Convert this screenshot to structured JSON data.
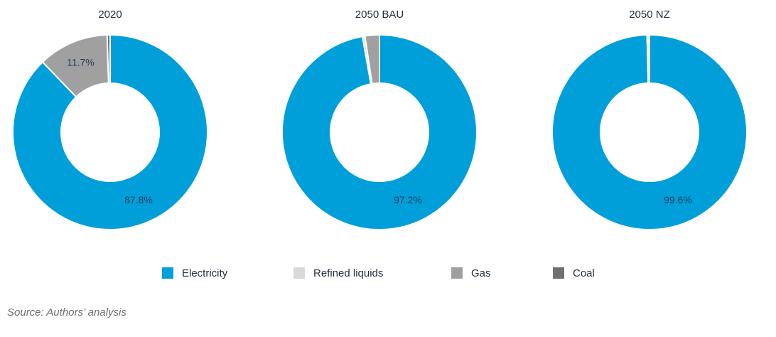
{
  "chart_data": [
    {
      "type": "pie",
      "title": "2020",
      "categories": [
        "Electricity",
        "Refined liquids",
        "Gas",
        "Coal"
      ],
      "values": [
        87.8,
        0.0,
        11.7,
        0.5
      ],
      "labels": [
        "87.8%",
        "",
        "11.7%",
        ""
      ]
    },
    {
      "type": "pie",
      "title": "2050 BAU",
      "categories": [
        "Electricity",
        "Refined liquids",
        "Gas",
        "Coal"
      ],
      "values": [
        97.2,
        0.4,
        2.4,
        0.0
      ],
      "labels": [
        "97.2%",
        "",
        "",
        ""
      ]
    },
    {
      "type": "pie",
      "title": "2050 NZ",
      "categories": [
        "Electricity",
        "Refined liquids",
        "Gas",
        "Coal"
      ],
      "values": [
        99.6,
        0.2,
        0.2,
        0.0
      ],
      "labels": [
        "99.6%",
        "",
        "",
        ""
      ]
    }
  ],
  "legend": [
    {
      "label": "Electricity",
      "color": "#009fda"
    },
    {
      "label": "Refined liquids",
      "color": "#d9d9dd"
    },
    {
      "label": "Gas",
      "color": "#a0a0a0"
    },
    {
      "label": "Coal",
      "color": "#707070"
    }
  ],
  "source": "Source: Authors’ analysis"
}
